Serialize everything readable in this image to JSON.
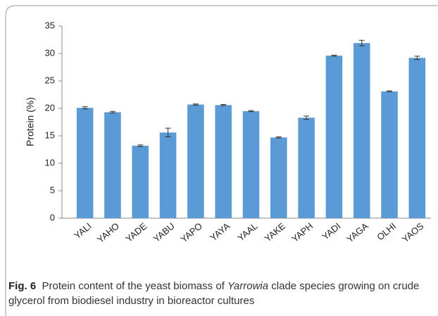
{
  "chart_data": {
    "type": "bar",
    "y_label": "Protein (%)",
    "categories": [
      "YALI",
      "YAHO",
      "YADE",
      "YABU",
      "YAPO",
      "YAYA",
      "YAAL",
      "YAKE",
      "YAPH",
      "YADI",
      "YAGA",
      "OLHI",
      "YAOS"
    ],
    "values": [
      20.1,
      19.3,
      13.2,
      15.6,
      20.7,
      20.6,
      19.5,
      14.7,
      18.3,
      29.6,
      31.9,
      23.1,
      29.2
    ],
    "errors": [
      0.2,
      0.15,
      0.15,
      0.8,
      0.1,
      0.1,
      0.1,
      0.1,
      0.3,
      0.1,
      0.5,
      0.1,
      0.3
    ],
    "color": "#5b9bd5",
    "ylim": [
      0,
      35
    ],
    "yticks": [
      0,
      5,
      10,
      15,
      20,
      25,
      30,
      35
    ],
    "grid": false
  },
  "caption": {
    "label": "Fig. 6",
    "text_start": "Protein content of the yeast biomass of",
    "italic": "Yarrowia",
    "text_end": "clade species growing on crude glycerol from biodiesel industry in bioreactor cultures"
  }
}
